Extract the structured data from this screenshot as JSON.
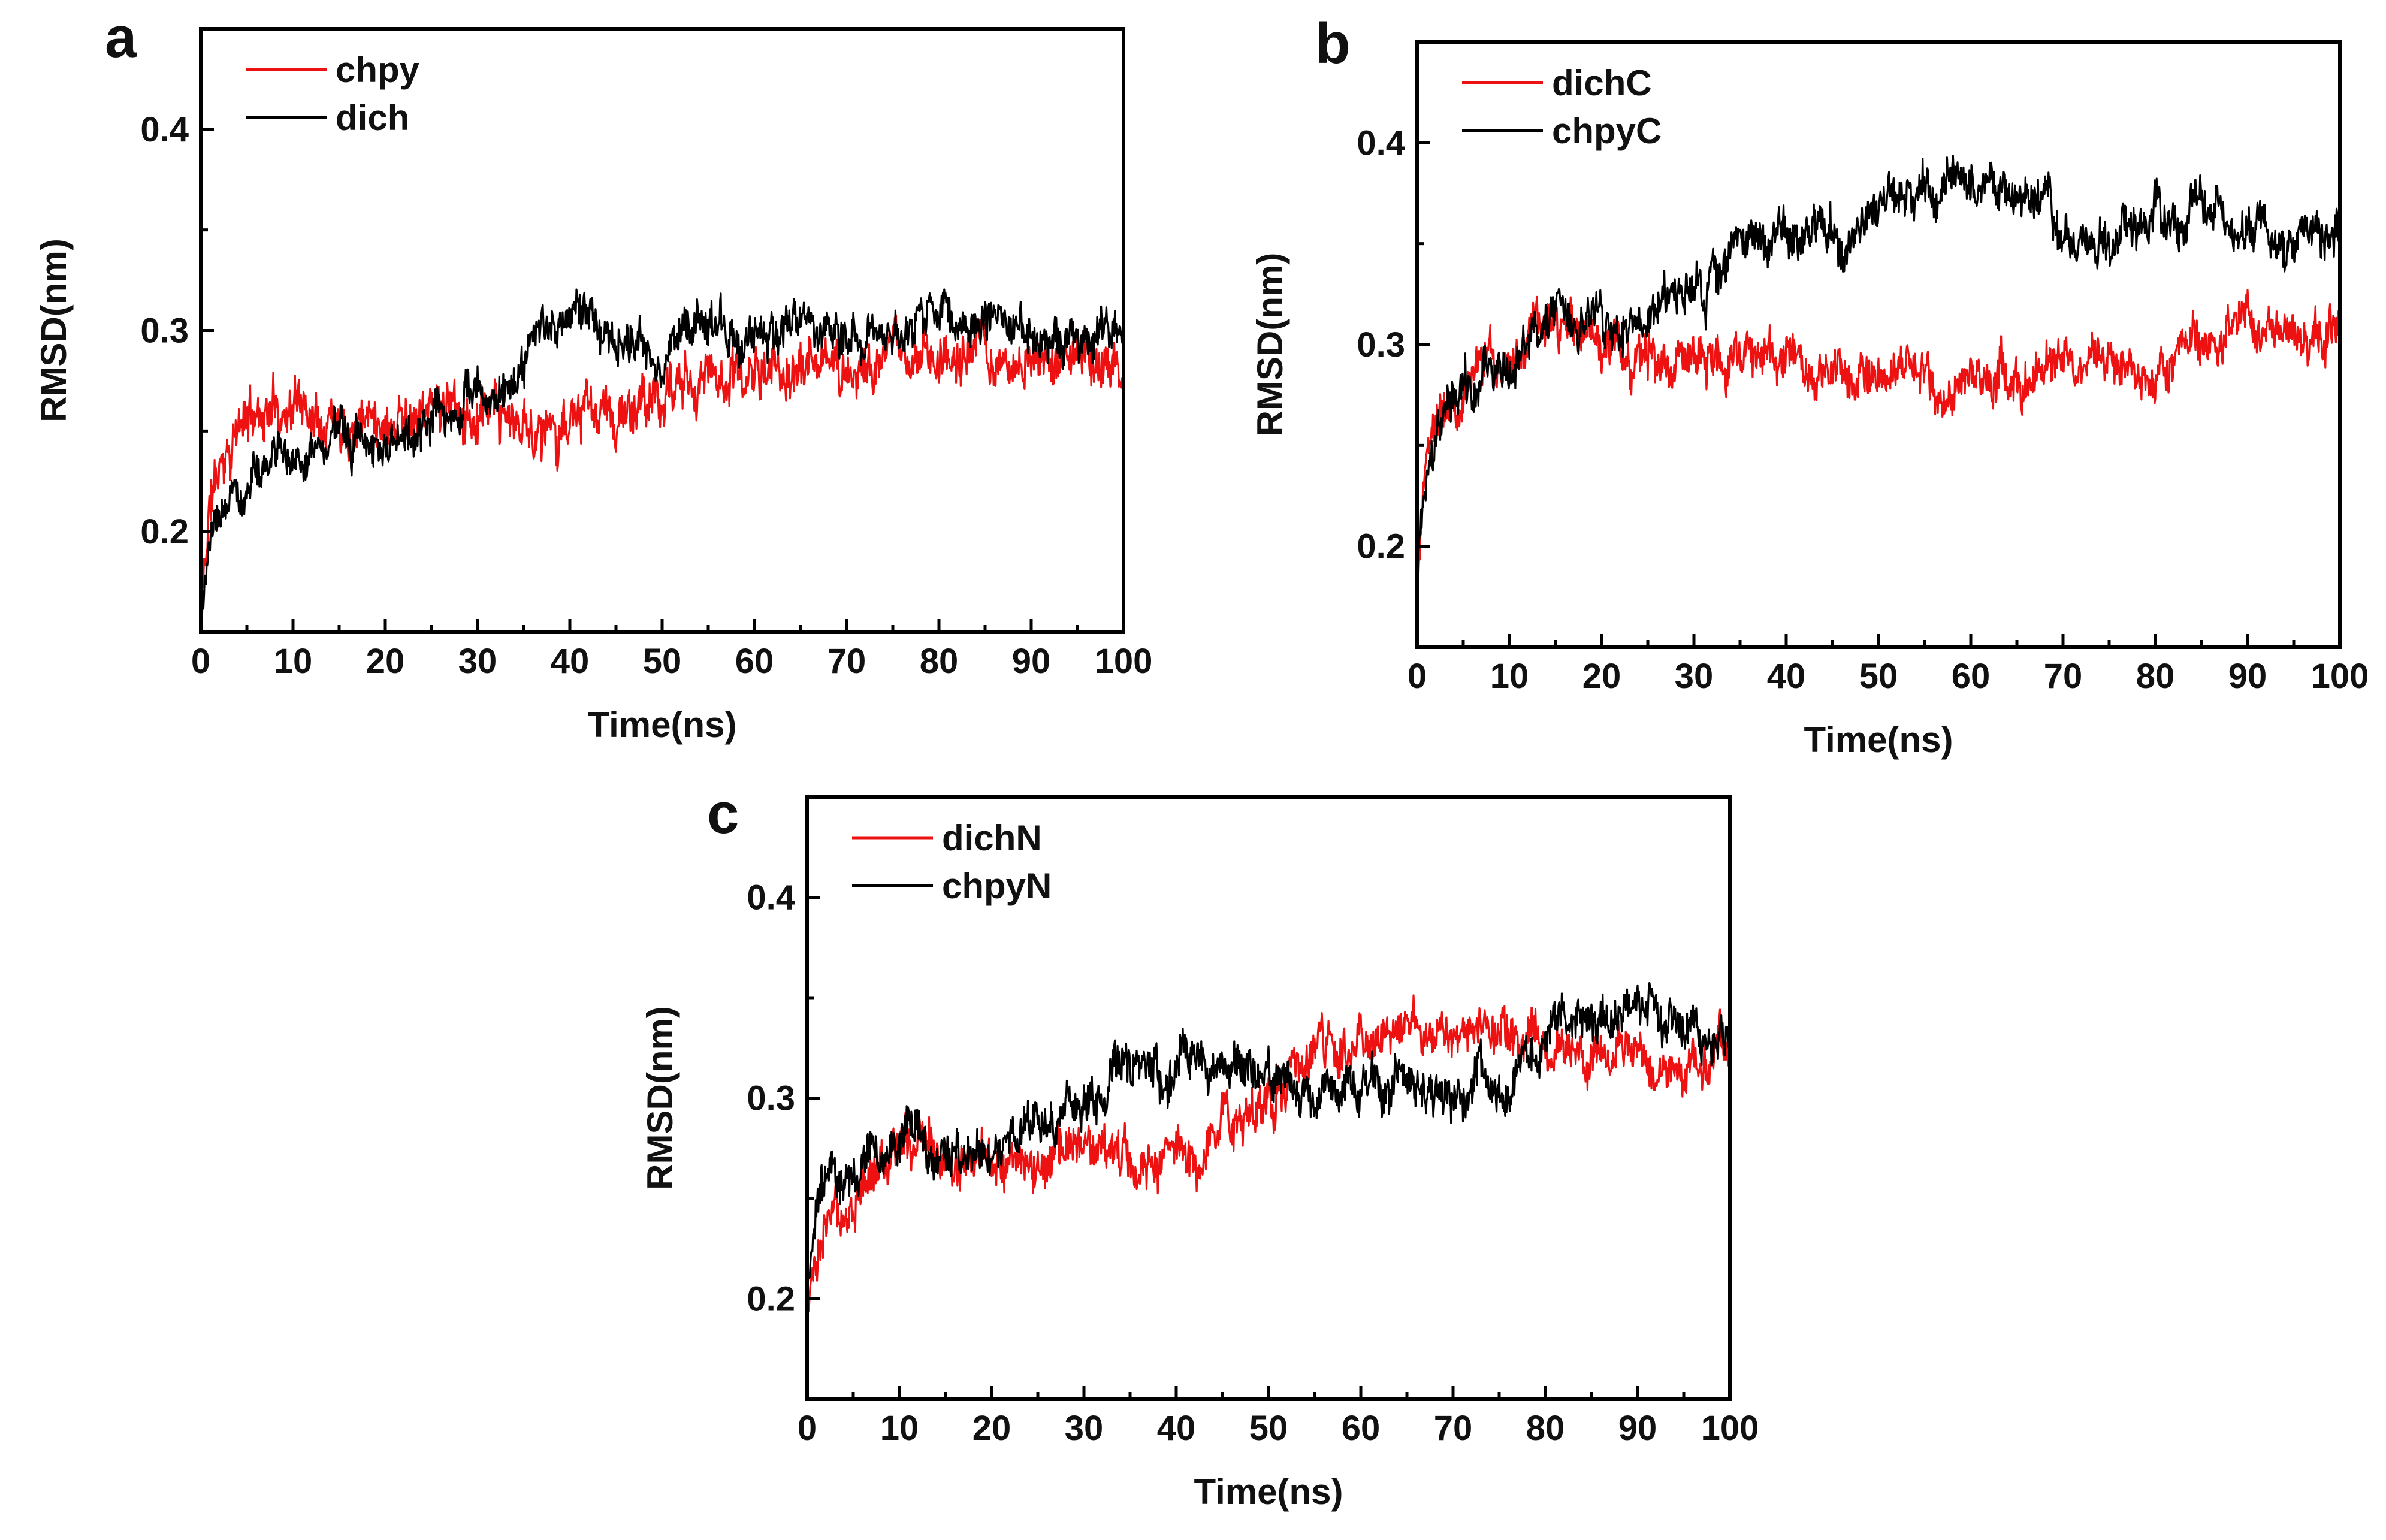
{
  "chart_data": [
    {
      "type": "line",
      "panel_label": "a",
      "xlabel": "Time(ns)",
      "ylabel": "RMSD(nm)",
      "xlim": [
        0,
        100
      ],
      "ylim": [
        0.15,
        0.45
      ],
      "xticks": [
        0,
        10,
        20,
        30,
        40,
        50,
        60,
        70,
        80,
        90,
        100
      ],
      "xtick_labels": [
        "0",
        "10",
        "20",
        "30",
        "40",
        "50",
        "60",
        "70",
        "80",
        "90",
        "100"
      ],
      "yticks": [
        0.2,
        0.3,
        0.4
      ],
      "ytick_labels": [
        "0.2",
        "0.3",
        "0.4"
      ],
      "legend_position": "top-left",
      "series": [
        {
          "name": "chpy",
          "color": "#ee1111",
          "noise": 0.011,
          "seed": 11,
          "x": [
            0,
            1,
            3,
            6,
            10,
            15,
            20,
            25,
            30,
            35,
            40,
            45,
            50,
            55,
            60,
            65,
            70,
            75,
            80,
            85,
            90,
            95,
            100
          ],
          "y": [
            0.16,
            0.215,
            0.245,
            0.26,
            0.265,
            0.262,
            0.26,
            0.262,
            0.255,
            0.25,
            0.255,
            0.255,
            0.265,
            0.28,
            0.278,
            0.28,
            0.282,
            0.285,
            0.29,
            0.285,
            0.282,
            0.285,
            0.285
          ]
        },
        {
          "name": "dich",
          "color": "#000000",
          "noise": 0.009,
          "seed": 23,
          "x": [
            0,
            1,
            3,
            6,
            10,
            15,
            20,
            25,
            30,
            35,
            38,
            40,
            45,
            50,
            55,
            60,
            65,
            70,
            75,
            80,
            85,
            90,
            95,
            100
          ],
          "y": [
            0.16,
            0.19,
            0.215,
            0.23,
            0.24,
            0.245,
            0.245,
            0.255,
            0.265,
            0.28,
            0.305,
            0.31,
            0.3,
            0.29,
            0.305,
            0.3,
            0.305,
            0.3,
            0.298,
            0.31,
            0.305,
            0.3,
            0.295,
            0.295
          ]
        }
      ]
    },
    {
      "type": "line",
      "panel_label": "b",
      "xlabel": "Time(ns)",
      "ylabel": "RMSD(nm)",
      "xlim": [
        0,
        100
      ],
      "ylim": [
        0.15,
        0.45
      ],
      "xticks": [
        0,
        10,
        20,
        30,
        40,
        50,
        60,
        70,
        80,
        90,
        100
      ],
      "xtick_labels": [
        "0",
        "10",
        "20",
        "30",
        "40",
        "50",
        "60",
        "70",
        "80",
        "90",
        "100"
      ],
      "yticks": [
        0.2,
        0.3,
        0.4
      ],
      "ytick_labels": [
        "0.2",
        "0.3",
        "0.4"
      ],
      "legend_position": "top-left",
      "series": [
        {
          "name": "dichC",
          "color": "#ee1111",
          "noise": 0.01,
          "seed": 37,
          "x": [
            0,
            1,
            3,
            6,
            10,
            15,
            20,
            25,
            30,
            35,
            40,
            45,
            50,
            55,
            60,
            65,
            70,
            75,
            80,
            85,
            90,
            95,
            100
          ],
          "y": [
            0.18,
            0.25,
            0.275,
            0.285,
            0.295,
            0.305,
            0.3,
            0.295,
            0.295,
            0.295,
            0.29,
            0.285,
            0.285,
            0.285,
            0.285,
            0.29,
            0.29,
            0.29,
            0.295,
            0.3,
            0.305,
            0.305,
            0.31
          ]
        },
        {
          "name": "chpyC",
          "color": "#000000",
          "noise": 0.01,
          "seed": 41,
          "x": [
            0,
            1,
            3,
            6,
            10,
            15,
            20,
            25,
            30,
            35,
            40,
            45,
            50,
            55,
            60,
            65,
            70,
            75,
            80,
            85,
            90,
            95,
            100
          ],
          "y": [
            0.18,
            0.24,
            0.265,
            0.28,
            0.295,
            0.31,
            0.31,
            0.31,
            0.33,
            0.345,
            0.355,
            0.355,
            0.36,
            0.38,
            0.38,
            0.375,
            0.355,
            0.345,
            0.37,
            0.37,
            0.355,
            0.35,
            0.36
          ]
        }
      ]
    },
    {
      "type": "line",
      "panel_label": "c",
      "xlabel": "Time(ns)",
      "ylabel": "RMSD(nm)",
      "xlim": [
        0,
        100
      ],
      "ylim": [
        0.15,
        0.45
      ],
      "xticks": [
        0,
        10,
        20,
        30,
        40,
        50,
        60,
        70,
        80,
        90,
        100
      ],
      "xtick_labels": [
        "0",
        "10",
        "20",
        "30",
        "40",
        "50",
        "60",
        "70",
        "80",
        "90",
        "100"
      ],
      "yticks": [
        0.2,
        0.3,
        0.4
      ],
      "ytick_labels": [
        "0.2",
        "0.3",
        "0.4"
      ],
      "legend_position": "top-left",
      "series": [
        {
          "name": "dichN",
          "color": "#ee1111",
          "noise": 0.01,
          "seed": 53,
          "x": [
            0,
            1,
            3,
            6,
            10,
            15,
            20,
            25,
            30,
            35,
            40,
            42,
            45,
            50,
            55,
            60,
            65,
            70,
            75,
            80,
            85,
            90,
            95,
            100
          ],
          "y": [
            0.2,
            0.225,
            0.245,
            0.26,
            0.275,
            0.27,
            0.265,
            0.27,
            0.275,
            0.27,
            0.27,
            0.265,
            0.285,
            0.3,
            0.325,
            0.33,
            0.335,
            0.335,
            0.33,
            0.325,
            0.32,
            0.32,
            0.315,
            0.325
          ]
        },
        {
          "name": "chpyN",
          "color": "#000000",
          "noise": 0.01,
          "seed": 67,
          "x": [
            0,
            1,
            3,
            6,
            10,
            15,
            20,
            25,
            30,
            35,
            40,
            45,
            50,
            55,
            60,
            65,
            70,
            75,
            80,
            85,
            90,
            95,
            100
          ],
          "y": [
            0.2,
            0.245,
            0.26,
            0.265,
            0.275,
            0.27,
            0.27,
            0.285,
            0.3,
            0.31,
            0.32,
            0.32,
            0.315,
            0.3,
            0.31,
            0.305,
            0.3,
            0.305,
            0.33,
            0.34,
            0.345,
            0.335,
            0.33
          ]
        }
      ]
    }
  ]
}
